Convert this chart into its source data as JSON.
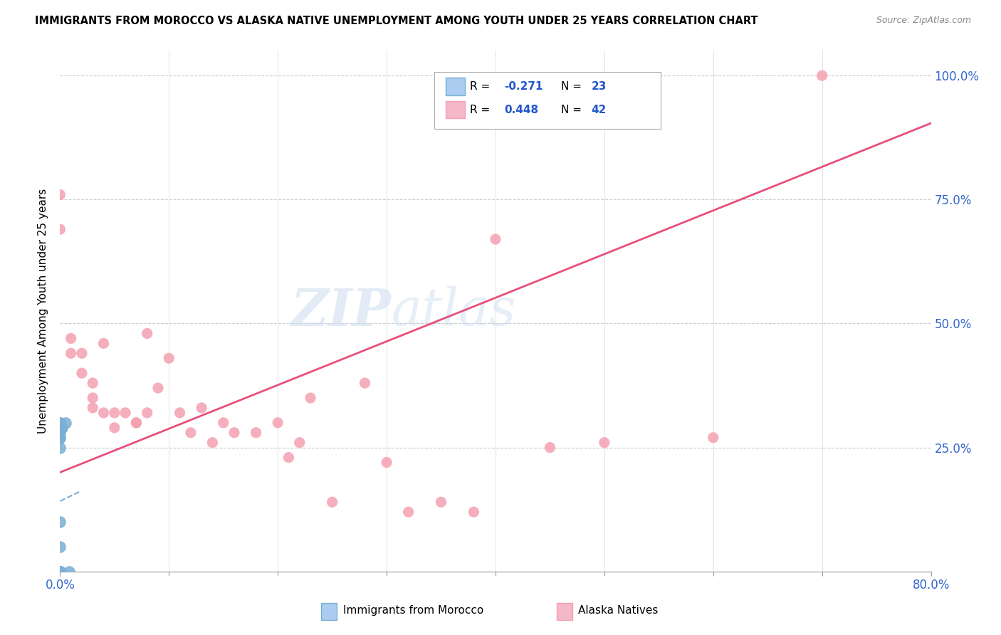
{
  "title": "IMMIGRANTS FROM MOROCCO VS ALASKA NATIVE UNEMPLOYMENT AMONG YOUTH UNDER 25 YEARS CORRELATION CHART",
  "source": "Source: ZipAtlas.com",
  "ylabel": "Unemployment Among Youth under 25 years",
  "xlim": [
    0.0,
    0.8
  ],
  "ylim": [
    0.0,
    1.05
  ],
  "xtick_positions": [
    0.0,
    0.1,
    0.2,
    0.3,
    0.4,
    0.5,
    0.6,
    0.7,
    0.8
  ],
  "legend_r1": "R = -0.271",
  "legend_n1": "N = 23",
  "legend_r2": "R = 0.448",
  "legend_n2": "N = 42",
  "morocco_color": "#7bafd4",
  "alaska_color": "#f4a0b0",
  "alaska_line_color": "#e8507a",
  "morocco_line_color": "#7bafd4",
  "watermark_zip": "ZIP",
  "watermark_atlas": "atlas",
  "morocco_x": [
    0.0,
    0.0,
    0.0,
    0.0,
    0.0,
    0.0,
    0.0,
    0.0,
    0.0,
    0.0,
    0.0,
    0.0,
    0.0,
    0.0,
    0.0,
    0.0,
    0.0,
    0.0,
    0.0,
    0.001,
    0.002,
    0.005,
    0.008
  ],
  "morocco_y": [
    0.0,
    0.0,
    0.0,
    0.0,
    0.0,
    0.0,
    0.0,
    0.0,
    0.0,
    0.05,
    0.1,
    0.25,
    0.27,
    0.27,
    0.28,
    0.29,
    0.29,
    0.3,
    0.3,
    0.29,
    0.29,
    0.3,
    0.0
  ],
  "alaska_x": [
    0.0,
    0.0,
    0.01,
    0.01,
    0.02,
    0.02,
    0.03,
    0.03,
    0.03,
    0.04,
    0.04,
    0.05,
    0.05,
    0.06,
    0.07,
    0.07,
    0.08,
    0.08,
    0.09,
    0.1,
    0.11,
    0.12,
    0.13,
    0.14,
    0.15,
    0.16,
    0.18,
    0.2,
    0.21,
    0.22,
    0.23,
    0.25,
    0.28,
    0.3,
    0.32,
    0.35,
    0.38,
    0.4,
    0.45,
    0.5,
    0.6,
    0.7
  ],
  "alaska_y": [
    0.76,
    0.69,
    0.47,
    0.44,
    0.44,
    0.4,
    0.38,
    0.35,
    0.33,
    0.46,
    0.32,
    0.32,
    0.29,
    0.32,
    0.3,
    0.3,
    0.48,
    0.32,
    0.37,
    0.43,
    0.32,
    0.28,
    0.33,
    0.26,
    0.3,
    0.28,
    0.28,
    0.3,
    0.23,
    0.26,
    0.35,
    0.14,
    0.38,
    0.22,
    0.12,
    0.14,
    0.12,
    0.67,
    0.25,
    0.26,
    0.27,
    1.0
  ]
}
